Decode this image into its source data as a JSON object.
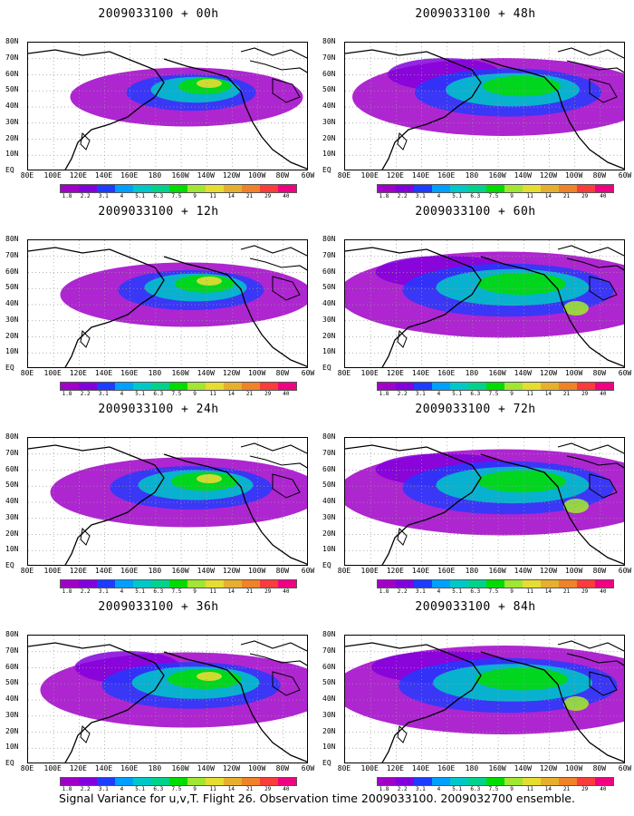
{
  "caption": "Signal Variance for u,v,T. Flight 26. Observation time 2009033100. 2009032700 ensemble.",
  "panels": [
    {
      "title": "2009033100 + 00h",
      "extent": 0.35
    },
    {
      "title": "2009033100 + 48h",
      "extent": 0.7
    },
    {
      "title": "2009033100 + 12h",
      "extent": 0.45
    },
    {
      "title": "2009033100 + 60h",
      "extent": 0.85
    },
    {
      "title": "2009033100 + 24h",
      "extent": 0.55
    },
    {
      "title": "2009033100 + 72h",
      "extent": 0.85
    },
    {
      "title": "2009033100 + 36h",
      "extent": 0.65
    },
    {
      "title": "2009033100 + 84h",
      "extent": 0.9
    }
  ],
  "y_axis_labels": [
    "80N",
    "70N",
    "60N",
    "50N",
    "40N",
    "30N",
    "20N",
    "10N",
    "EQ"
  ],
  "x_axis_labels": [
    "80E",
    "100E",
    "120E",
    "140E",
    "160E",
    "180",
    "160W",
    "140W",
    "120W",
    "100W",
    "80W",
    "60W"
  ],
  "colorbar": {
    "labels": [
      "1.8",
      "2.2",
      "3.1",
      "4",
      "5.1",
      "6.3",
      "7.5",
      "9",
      "11",
      "14",
      "21",
      "29",
      "40"
    ],
    "colors": [
      "#a000c8",
      "#8200dc",
      "#1e3cff",
      "#00a0ff",
      "#00c8c8",
      "#00d28c",
      "#00dc00",
      "#a0e632",
      "#e6dc32",
      "#e6af2d",
      "#f08228",
      "#fa3c3c",
      "#f00082"
    ]
  }
}
